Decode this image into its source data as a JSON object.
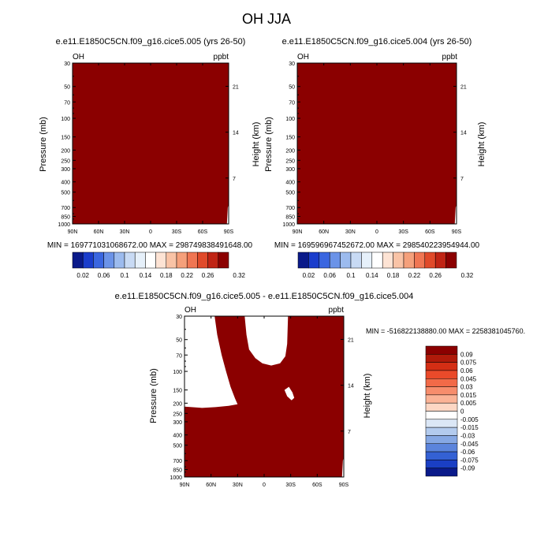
{
  "main_title": "OH JJA",
  "colors": {
    "field": "#8b0000",
    "frame": "#000000",
    "background": "#ffffff"
  },
  "charts": [
    {
      "title": "e.e11.E1850C5CN.f09_g16.cice5.005 (yrs 26-50)",
      "left_label": "OH",
      "right_label": "ppbt",
      "ylabel": "Pressure (mb)",
      "ylabel_right": "Height (km)",
      "stats": "MIN = 169771031068672.00   MAX = 298749838491648.00"
    },
    {
      "title": "e.e11.E1850C5CN.f09_g16.cice5.004 (yrs 26-50)",
      "left_label": "OH",
      "right_label": "ppbt",
      "ylabel": "Pressure (mb)",
      "ylabel_right": "Height (km)",
      "stats": "MIN = 169596967452672.00   MAX = 298540223954944.00"
    },
    {
      "title": "e.e11.E1850C5CN.f09_g16.cice5.005 - e.e11.E1850C5CN.f09_g16.cice5.004",
      "left_label": "OH",
      "right_label": "ppbt",
      "ylabel": "Pressure (mb)",
      "ylabel_right": "Height (km)",
      "stats": "MIN = -516822138880.00   MAX = 2258381045760."
    }
  ],
  "chart_data": [
    {
      "type": "heatmap",
      "title": "e.e11.E1850C5CN.f09_g16.cice5.005 (yrs 26-50)",
      "xlabel": "",
      "ylabel": "Pressure (mb)",
      "ylabel_right": "Height (km)",
      "x_ticks": [
        "90N",
        "60N",
        "30N",
        "0",
        "30S",
        "60S",
        "90S"
      ],
      "x_tick_values": [
        90,
        60,
        30,
        0,
        -30,
        -60,
        -90
      ],
      "xlim": [
        90,
        -90
      ],
      "y_ticks": [
        30,
        50,
        70,
        100,
        150,
        200,
        250,
        300,
        400,
        500,
        700,
        850,
        1000
      ],
      "ylim": [
        1000,
        30
      ],
      "y_scale": "log",
      "y_right_ticks": [
        7,
        14,
        21
      ],
      "min": 169771031068672.0,
      "max": 298749838491648.0,
      "colorbar": {
        "levels": [
          0.02,
          0.04,
          0.06,
          0.08,
          0.1,
          0.12,
          0.14,
          0.16,
          0.18,
          0.2,
          0.22,
          0.24,
          0.26,
          0.28,
          0.3,
          0.32
        ],
        "labels": [
          "0.02",
          "0.06",
          "0.1",
          "0.14",
          "0.18",
          "0.22",
          "0.26",
          "0.32"
        ],
        "colors": [
          "#0a1a8a",
          "#1a3dcc",
          "#3a66e0",
          "#6b93e8",
          "#9cbbee",
          "#c8daf4",
          "#e6f0fa",
          "#ffffff",
          "#fde3d4",
          "#f9c3a6",
          "#f5a07b",
          "#f07653",
          "#e04a2a",
          "#c02414",
          "#8b0000"
        ]
      },
      "field_value_level": 0.32
    },
    {
      "type": "heatmap",
      "title": "e.e11.E1850C5CN.f09_g16.cice5.004 (yrs 26-50)",
      "xlabel": "",
      "ylabel": "Pressure (mb)",
      "ylabel_right": "Height (km)",
      "x_ticks": [
        "90N",
        "60N",
        "30N",
        "0",
        "30S",
        "60S",
        "90S"
      ],
      "x_tick_values": [
        90,
        60,
        30,
        0,
        -30,
        -60,
        -90
      ],
      "xlim": [
        90,
        -90
      ],
      "y_ticks": [
        30,
        50,
        70,
        100,
        150,
        200,
        250,
        300,
        400,
        500,
        700,
        850,
        1000
      ],
      "ylim": [
        1000,
        30
      ],
      "y_scale": "log",
      "y_right_ticks": [
        7,
        14,
        21
      ],
      "min": 169596967452672.0,
      "max": 298540223954944.0,
      "colorbar": {
        "levels": [
          0.02,
          0.04,
          0.06,
          0.08,
          0.1,
          0.12,
          0.14,
          0.16,
          0.18,
          0.2,
          0.22,
          0.24,
          0.26,
          0.28,
          0.3,
          0.32
        ],
        "labels": [
          "0.02",
          "0.06",
          "0.1",
          "0.14",
          "0.18",
          "0.22",
          "0.26",
          "0.32"
        ],
        "colors": [
          "#0a1a8a",
          "#1a3dcc",
          "#3a66e0",
          "#6b93e8",
          "#9cbbee",
          "#c8daf4",
          "#e6f0fa",
          "#ffffff",
          "#fde3d4",
          "#f9c3a6",
          "#f5a07b",
          "#f07653",
          "#e04a2a",
          "#c02414",
          "#8b0000"
        ]
      },
      "field_value_level": 0.32
    },
    {
      "type": "heatmap",
      "title": "e.e11.E1850C5CN.f09_g16.cice5.005 - e.e11.E1850C5CN.f09_g16.cice5.004",
      "xlabel": "",
      "ylabel": "Pressure (mb)",
      "ylabel_right": "Height (km)",
      "x_ticks": [
        "90N",
        "60N",
        "30N",
        "0",
        "30S",
        "60S",
        "90S"
      ],
      "x_tick_values": [
        90,
        60,
        30,
        0,
        -30,
        -60,
        -90
      ],
      "xlim": [
        90,
        -90
      ],
      "y_ticks": [
        30,
        50,
        70,
        100,
        150,
        200,
        250,
        300,
        400,
        500,
        700,
        850,
        1000
      ],
      "ylim": [
        1000,
        30
      ],
      "y_scale": "log",
      "y_right_ticks": [
        7,
        14,
        21
      ],
      "min": -516822138880.0,
      "max": 2258381045760,
      "colorbar": {
        "orientation": "vertical",
        "labels": [
          "0.09",
          "0.075",
          "0.06",
          "0.045",
          "0.03",
          "0.015",
          "0.005",
          "0",
          "-0.005",
          "-0.015",
          "-0.03",
          "-0.045",
          "-0.06",
          "-0.075",
          "-0.09"
        ],
        "colors": [
          "#8b0000",
          "#b01a0a",
          "#d42e14",
          "#ea4a2a",
          "#f26a48",
          "#f78d6c",
          "#fbb396",
          "#fdd7c4",
          "#ffffff",
          "#dbe7f6",
          "#b3cbee",
          "#86a8e4",
          "#5b84dc",
          "#3461d4",
          "#1a3fc4",
          "#0a1a8a"
        ]
      },
      "white_regions": [
        {
          "description_lat_range": [
            90,
            32
          ],
          "p_range": [
            30,
            225
          ]
        },
        {
          "description_lat_range": [
            20,
            -27
          ],
          "p_range": [
            30,
            88
          ]
        },
        {
          "description_lat_range": [
            -25,
            -32
          ],
          "p_range": [
            137,
            190
          ]
        }
      ]
    }
  ]
}
